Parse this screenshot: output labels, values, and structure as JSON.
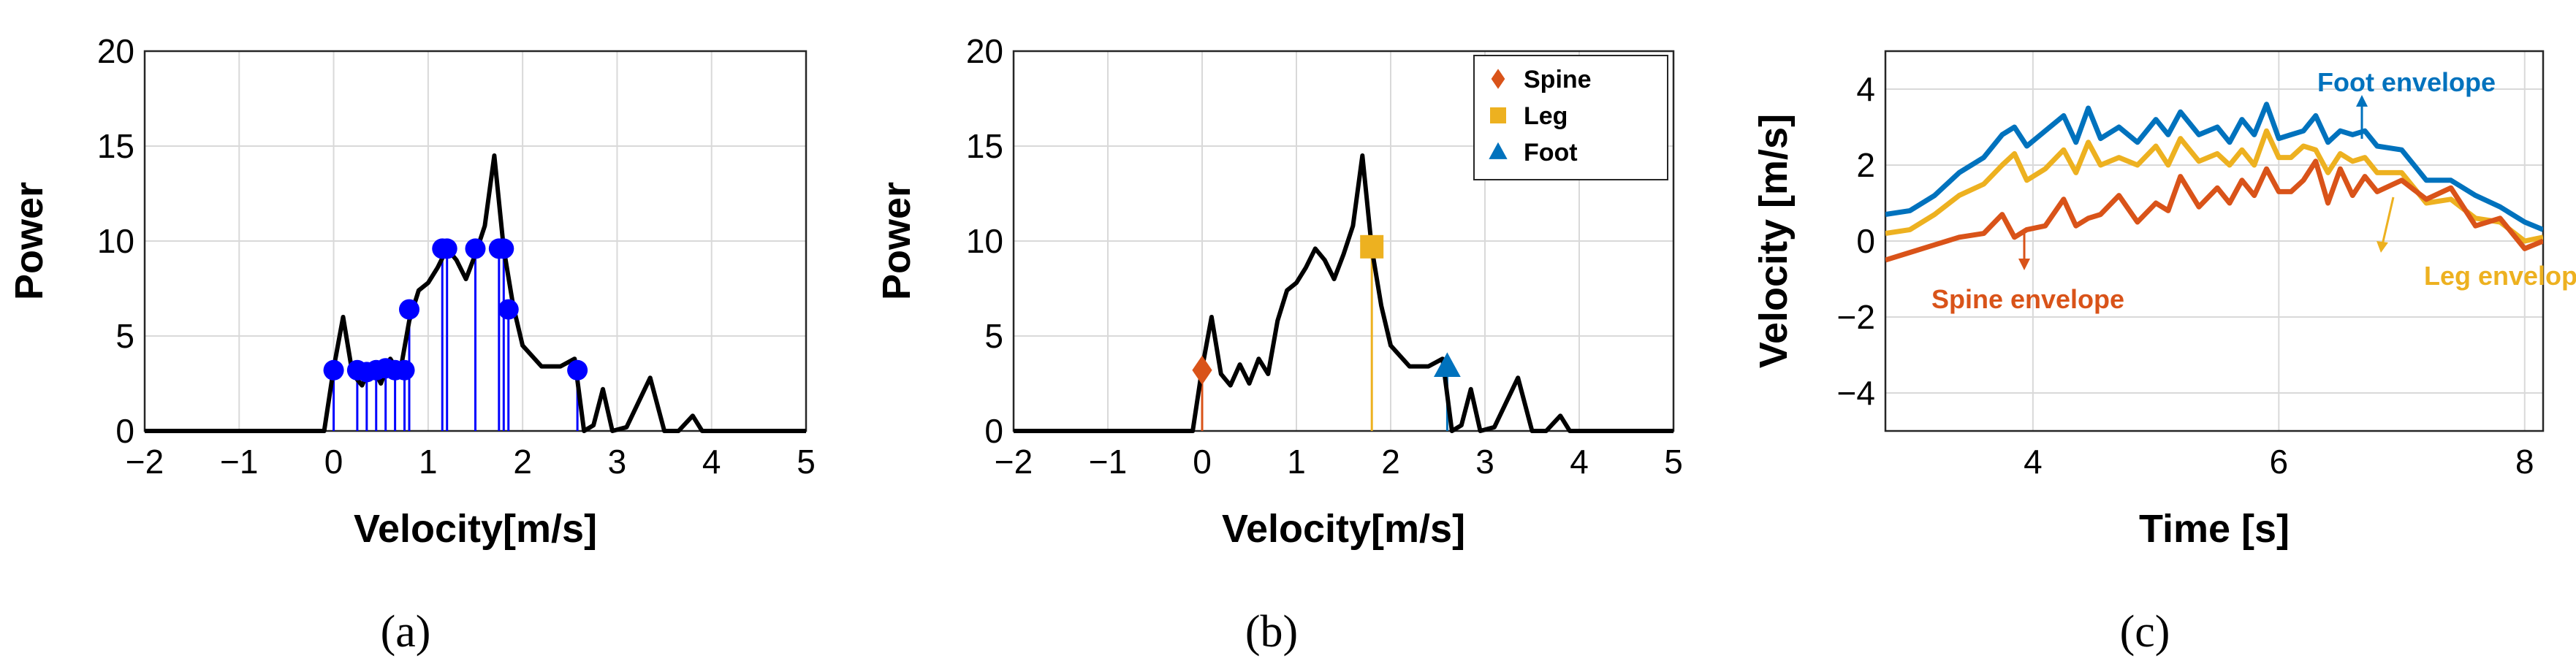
{
  "chart_data": [
    {
      "type": "line",
      "panel_label": "(a)",
      "xlabel": "Velocity[m/s]",
      "ylabel": "Power",
      "xlim": [
        -2,
        5
      ],
      "ylim": [
        0,
        20
      ],
      "xticks": [
        -2,
        -1,
        0,
        1,
        2,
        3,
        4,
        5
      ],
      "yticks": [
        0,
        5,
        10,
        15,
        20
      ],
      "xtick_labels": [
        "−2",
        "−1",
        "0",
        "1",
        "2",
        "3",
        "4",
        "5"
      ],
      "ytick_labels": [
        "0",
        "5",
        "10",
        "15",
        "20"
      ],
      "grid": true,
      "line_color": "#000000",
      "spectrum": {
        "x": [
          -2.0,
          -0.1,
          0.0,
          0.1,
          0.2,
          0.3,
          0.4,
          0.5,
          0.6,
          0.7,
          0.8,
          0.9,
          1.0,
          1.1,
          1.2,
          1.3,
          1.4,
          1.5,
          1.6,
          1.7,
          1.8,
          1.9,
          2.0,
          2.2,
          2.4,
          2.55,
          2.65,
          2.75,
          2.85,
          2.95,
          3.1,
          3.35,
          3.5,
          3.65,
          3.8,
          3.9,
          4.0,
          5.0
        ],
        "y": [
          0,
          0,
          3.3,
          6.0,
          3.0,
          2.4,
          3.5,
          2.5,
          3.8,
          3.0,
          5.8,
          7.4,
          7.8,
          8.6,
          9.6,
          9.0,
          8.0,
          9.3,
          10.8,
          14.5,
          9.6,
          6.6,
          4.5,
          3.4,
          3.4,
          3.8,
          0,
          0.3,
          2.2,
          0,
          0.2,
          2.8,
          0,
          0,
          0.8,
          0,
          0,
          0
        ]
      },
      "stem_color": "#0000FF",
      "peaks": {
        "x": [
          0.0,
          0.25,
          0.35,
          0.45,
          0.55,
          0.65,
          0.75,
          0.8,
          1.15,
          1.2,
          1.5,
          1.75,
          1.8,
          1.85,
          2.58
        ],
        "y": [
          3.2,
          3.2,
          3.1,
          3.2,
          3.3,
          3.2,
          3.2,
          6.4,
          9.6,
          9.6,
          9.6,
          9.6,
          9.6,
          6.4,
          3.2
        ]
      }
    },
    {
      "type": "line",
      "panel_label": "(b)",
      "xlabel": "Velocity[m/s]",
      "ylabel": "Power",
      "xlim": [
        -2,
        5
      ],
      "ylim": [
        0,
        20
      ],
      "xticks": [
        -2,
        -1,
        0,
        1,
        2,
        3,
        4,
        5
      ],
      "yticks": [
        0,
        5,
        10,
        15,
        20
      ],
      "xtick_labels": [
        "−2",
        "−1",
        "0",
        "1",
        "2",
        "3",
        "4",
        "5"
      ],
      "ytick_labels": [
        "0",
        "5",
        "10",
        "15",
        "20"
      ],
      "grid": true,
      "line_color": "#000000",
      "spectrum": {
        "x": [
          -2.0,
          -0.1,
          0.0,
          0.1,
          0.2,
          0.3,
          0.4,
          0.5,
          0.6,
          0.7,
          0.8,
          0.9,
          1.0,
          1.1,
          1.2,
          1.3,
          1.4,
          1.5,
          1.6,
          1.7,
          1.8,
          1.9,
          2.0,
          2.2,
          2.4,
          2.55,
          2.65,
          2.75,
          2.85,
          2.95,
          3.1,
          3.35,
          3.5,
          3.65,
          3.8,
          3.9,
          4.0,
          5.0
        ],
        "y": [
          0,
          0,
          3.3,
          6.0,
          3.0,
          2.4,
          3.5,
          2.5,
          3.8,
          3.0,
          5.8,
          7.4,
          7.8,
          8.6,
          9.6,
          9.0,
          8.0,
          9.3,
          10.8,
          14.5,
          9.6,
          6.6,
          4.5,
          3.4,
          3.4,
          3.8,
          0,
          0.3,
          2.2,
          0,
          0.2,
          2.8,
          0,
          0,
          0.8,
          0,
          0,
          0
        ]
      },
      "legend_position": "top-right",
      "markers": [
        {
          "name": "Spine",
          "x": 0.0,
          "y": 3.2,
          "shape": "diamond",
          "color": "#D95319"
        },
        {
          "name": "Leg",
          "x": 1.8,
          "y": 9.7,
          "shape": "square",
          "color": "#EDB120"
        },
        {
          "name": "Foot",
          "x": 2.6,
          "y": 3.4,
          "shape": "triangle",
          "color": "#0072BD"
        }
      ]
    },
    {
      "type": "line",
      "panel_label": "(c)",
      "xlabel": "Time [s]",
      "ylabel": "Velocity [m/s]",
      "xlim": [
        2.8,
        8.15
      ],
      "ylim": [
        -5,
        5
      ],
      "xticks": [
        4,
        6,
        8
      ],
      "yticks": [
        -4,
        -2,
        0,
        2,
        4
      ],
      "xtick_labels": [
        "4",
        "6",
        "8"
      ],
      "ytick_labels": [
        "−4",
        "−2",
        "0",
        "2",
        "4"
      ],
      "grid": true,
      "series": [
        {
          "name": "Foot envelope",
          "color": "#0072BD",
          "x": [
            2.8,
            3.0,
            3.2,
            3.4,
            3.6,
            3.75,
            3.85,
            3.95,
            4.1,
            4.25,
            4.35,
            4.45,
            4.55,
            4.7,
            4.85,
            5.0,
            5.1,
            5.2,
            5.35,
            5.5,
            5.6,
            5.7,
            5.8,
            5.9,
            6.0,
            6.1,
            6.2,
            6.3,
            6.4,
            6.5,
            6.6,
            6.7,
            6.8,
            7.0,
            7.2,
            7.4,
            7.6,
            7.8,
            8.0,
            8.15
          ],
          "y": [
            0.7,
            0.8,
            1.2,
            1.8,
            2.2,
            2.8,
            3.0,
            2.5,
            2.9,
            3.3,
            2.6,
            3.5,
            2.7,
            3.0,
            2.6,
            3.2,
            2.8,
            3.4,
            2.8,
            3.0,
            2.6,
            3.2,
            2.8,
            3.6,
            2.7,
            2.8,
            2.9,
            3.3,
            2.6,
            2.9,
            2.8,
            2.9,
            2.5,
            2.4,
            1.6,
            1.6,
            1.2,
            0.9,
            0.5,
            0.3
          ]
        },
        {
          "name": "Leg envelope",
          "color": "#EDB120",
          "x": [
            2.8,
            3.0,
            3.2,
            3.4,
            3.6,
            3.75,
            3.85,
            3.95,
            4.1,
            4.25,
            4.35,
            4.45,
            4.55,
            4.7,
            4.85,
            5.0,
            5.1,
            5.2,
            5.35,
            5.5,
            5.6,
            5.7,
            5.8,
            5.9,
            6.0,
            6.1,
            6.2,
            6.3,
            6.4,
            6.5,
            6.6,
            6.7,
            6.8,
            7.0,
            7.2,
            7.4,
            7.6,
            7.8,
            8.0,
            8.15
          ],
          "y": [
            0.2,
            0.3,
            0.7,
            1.2,
            1.5,
            2.0,
            2.3,
            1.6,
            1.9,
            2.4,
            1.8,
            2.6,
            2.0,
            2.2,
            2.0,
            2.5,
            2.0,
            2.7,
            2.1,
            2.3,
            2.0,
            2.4,
            2.0,
            2.9,
            2.2,
            2.2,
            2.5,
            2.4,
            1.8,
            2.3,
            2.1,
            2.2,
            1.8,
            1.8,
            1.0,
            1.1,
            0.6,
            0.5,
            0.0,
            0.1
          ]
        },
        {
          "name": "Spine envelope",
          "color": "#D95319",
          "x": [
            2.8,
            3.0,
            3.2,
            3.4,
            3.6,
            3.75,
            3.85,
            3.95,
            4.1,
            4.25,
            4.35,
            4.45,
            4.55,
            4.7,
            4.85,
            5.0,
            5.1,
            5.2,
            5.35,
            5.5,
            5.6,
            5.7,
            5.8,
            5.9,
            6.0,
            6.1,
            6.2,
            6.3,
            6.4,
            6.5,
            6.6,
            6.7,
            6.8,
            7.0,
            7.2,
            7.4,
            7.6,
            7.8,
            8.0,
            8.15
          ],
          "y": [
            -0.5,
            -0.3,
            -0.1,
            0.1,
            0.2,
            0.7,
            0.1,
            0.3,
            0.4,
            1.1,
            0.4,
            0.6,
            0.7,
            1.2,
            0.5,
            1.0,
            0.8,
            1.7,
            0.9,
            1.4,
            1.0,
            1.6,
            1.2,
            1.9,
            1.3,
            1.3,
            1.6,
            2.1,
            1.0,
            1.9,
            1.2,
            1.7,
            1.3,
            1.6,
            1.1,
            1.4,
            0.4,
            0.6,
            -0.2,
            0.0
          ]
        }
      ],
      "annotations": [
        {
          "text": "Foot envelope",
          "series": "Foot envelope"
        },
        {
          "text": "Leg envelope",
          "series": "Leg envelope"
        },
        {
          "text": "Spine envelope",
          "series": "Spine envelope"
        }
      ]
    }
  ]
}
